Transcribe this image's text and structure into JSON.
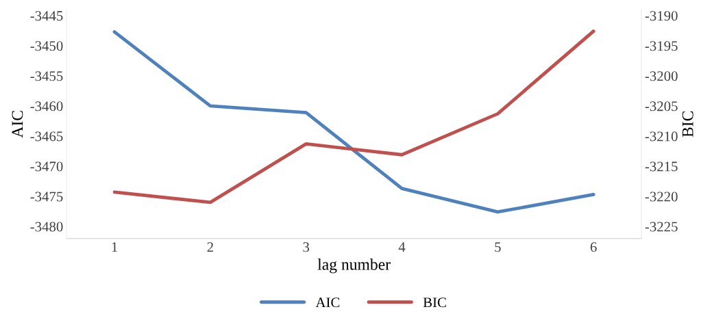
{
  "chart_data": {
    "type": "line",
    "xlabel": "lag number",
    "ylabel": "AIC",
    "y2label": "BIC",
    "categories": [
      "1",
      "2",
      "3",
      "4",
      "5",
      "6"
    ],
    "series": [
      {
        "name": "AIC",
        "color": "#4f81bd",
        "values": [
          -3447.7,
          -3460,
          -3461.1,
          -3473.7,
          -3477.6,
          -3474.7
        ]
      },
      {
        "name": "BIC",
        "color": "#c0504d",
        "axis": "y2",
        "values": [
          -3219.3,
          -3221,
          -3211.3,
          -3213.1,
          -3206.3,
          -3192.6
        ]
      }
    ],
    "ylim": [
      -3482,
      -3444
    ],
    "yticks": [
      -3480,
      -3475,
      -3470,
      -3465,
      -3460,
      -3455,
      -3450,
      -3445
    ],
    "y2lim": [
      -3227,
      -3189
    ],
    "y2ticks": [
      -3225,
      -3220,
      -3215,
      -3210,
      -3205,
      -3200,
      -3195,
      -3190
    ],
    "grid": false,
    "legend": "bottom",
    "marker": "none",
    "line_style": "solid"
  }
}
